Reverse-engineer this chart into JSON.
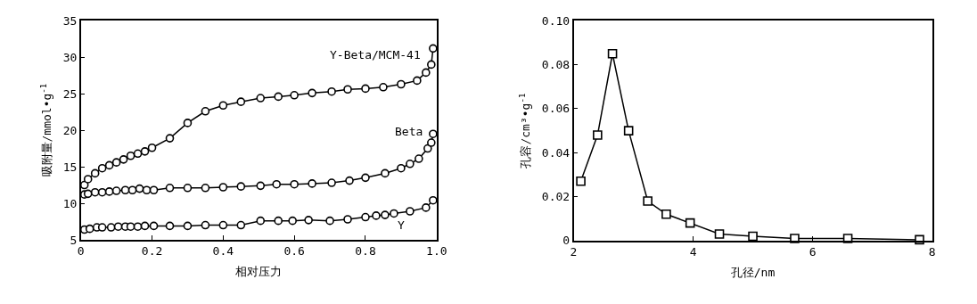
{
  "chart_data": [
    {
      "type": "line",
      "xlabel": "相对压力",
      "ylabel": "吸附量/mmol•g$^{-1}$",
      "xlim": [
        0,
        1.0
      ],
      "xticks": [
        0,
        {
          "value": 0.2,
          "label": "0.2"
        },
        {
          "value": 0.4,
          "label": "0.4"
        },
        {
          "value": 0.6,
          "label": "0.6"
        },
        {
          "value": 0.8,
          "label": "0.8"
        },
        {
          "value": 1.0,
          "label": "1.0"
        }
      ],
      "ylim": [
        5,
        35
      ],
      "yticks": [
        5,
        10,
        15,
        20,
        25,
        30,
        35
      ],
      "grid": false,
      "marker": "circle",
      "line_style": "solid",
      "series": [
        {
          "name": "Y-Beta/MCM-41",
          "color": "#000000",
          "x": [
            0.01,
            0.02,
            0.04,
            0.06,
            0.08,
            0.1,
            0.12,
            0.14,
            0.16,
            0.18,
            0.2,
            0.25,
            0.3,
            0.35,
            0.4,
            0.45,
            0.505,
            0.555,
            0.6,
            0.65,
            0.705,
            0.75,
            0.8,
            0.85,
            0.9,
            0.945,
            0.97,
            0.985,
            0.99
          ],
          "values": [
            12.5,
            13.3,
            14.1,
            14.8,
            15.2,
            15.6,
            16.0,
            16.5,
            16.8,
            17.1,
            17.6,
            18.9,
            21.0,
            22.6,
            23.4,
            23.9,
            24.4,
            24.6,
            24.8,
            25.1,
            25.3,
            25.6,
            25.7,
            25.9,
            26.3,
            26.8,
            27.9,
            29.0,
            31.2
          ]
        },
        {
          "name": "Beta",
          "color": "#000000",
          "x": [
            0.01,
            0.02,
            0.04,
            0.06,
            0.08,
            0.1,
            0.125,
            0.145,
            0.165,
            0.185,
            0.205,
            0.25,
            0.3,
            0.35,
            0.4,
            0.45,
            0.505,
            0.55,
            0.6,
            0.65,
            0.705,
            0.755,
            0.8,
            0.855,
            0.9,
            0.925,
            0.95,
            0.975,
            0.985,
            0.99
          ],
          "values": [
            11.2,
            11.3,
            11.5,
            11.5,
            11.6,
            11.7,
            11.8,
            11.8,
            12.0,
            11.8,
            11.8,
            12.1,
            12.1,
            12.1,
            12.2,
            12.3,
            12.4,
            12.6,
            12.6,
            12.7,
            12.8,
            13.1,
            13.5,
            14.1,
            14.8,
            15.4,
            16.1,
            17.5,
            18.3,
            19.5
          ]
        },
        {
          "name": "Y",
          "color": "#000000",
          "x": [
            0.01,
            0.025,
            0.045,
            0.06,
            0.085,
            0.105,
            0.125,
            0.14,
            0.16,
            0.18,
            0.205,
            0.25,
            0.3,
            0.35,
            0.4,
            0.45,
            0.505,
            0.555,
            0.595,
            0.64,
            0.7,
            0.75,
            0.8,
            0.83,
            0.855,
            0.88,
            0.925,
            0.97,
            0.99
          ],
          "values": [
            6.4,
            6.5,
            6.7,
            6.7,
            6.7,
            6.8,
            6.8,
            6.8,
            6.8,
            6.9,
            6.9,
            6.9,
            6.9,
            7.0,
            7.0,
            7.0,
            7.6,
            7.6,
            7.6,
            7.7,
            7.6,
            7.8,
            8.1,
            8.3,
            8.4,
            8.6,
            8.9,
            9.4,
            10.4
          ]
        }
      ]
    },
    {
      "type": "line",
      "xlabel": "孔径/nm",
      "ylabel": "孔容/cm³•g$^{-1}$",
      "xlim": [
        2,
        8
      ],
      "xticks": [
        2,
        4,
        6,
        8
      ],
      "ylim": [
        0,
        0.1
      ],
      "yticks": [
        0,
        {
          "value": 0.02,
          "label": "0.02"
        },
        {
          "value": 0.04,
          "label": "0.04"
        },
        {
          "value": 0.06,
          "label": "0.06"
        },
        {
          "value": 0.08,
          "label": "0.08"
        },
        {
          "value": 0.1,
          "label": "0.10"
        }
      ],
      "grid": false,
      "marker": "square",
      "line_style": "solid",
      "series": [
        {
          "color": "#000000",
          "x": [
            2.12,
            2.4,
            2.65,
            2.92,
            3.24,
            3.55,
            3.95,
            4.44,
            5.0,
            5.7,
            6.59,
            7.79
          ],
          "values": [
            0.027,
            0.048,
            0.085,
            0.05,
            0.018,
            0.012,
            0.008,
            0.003,
            0.002,
            0.001,
            0.001,
            0.0004
          ]
        }
      ]
    }
  ]
}
